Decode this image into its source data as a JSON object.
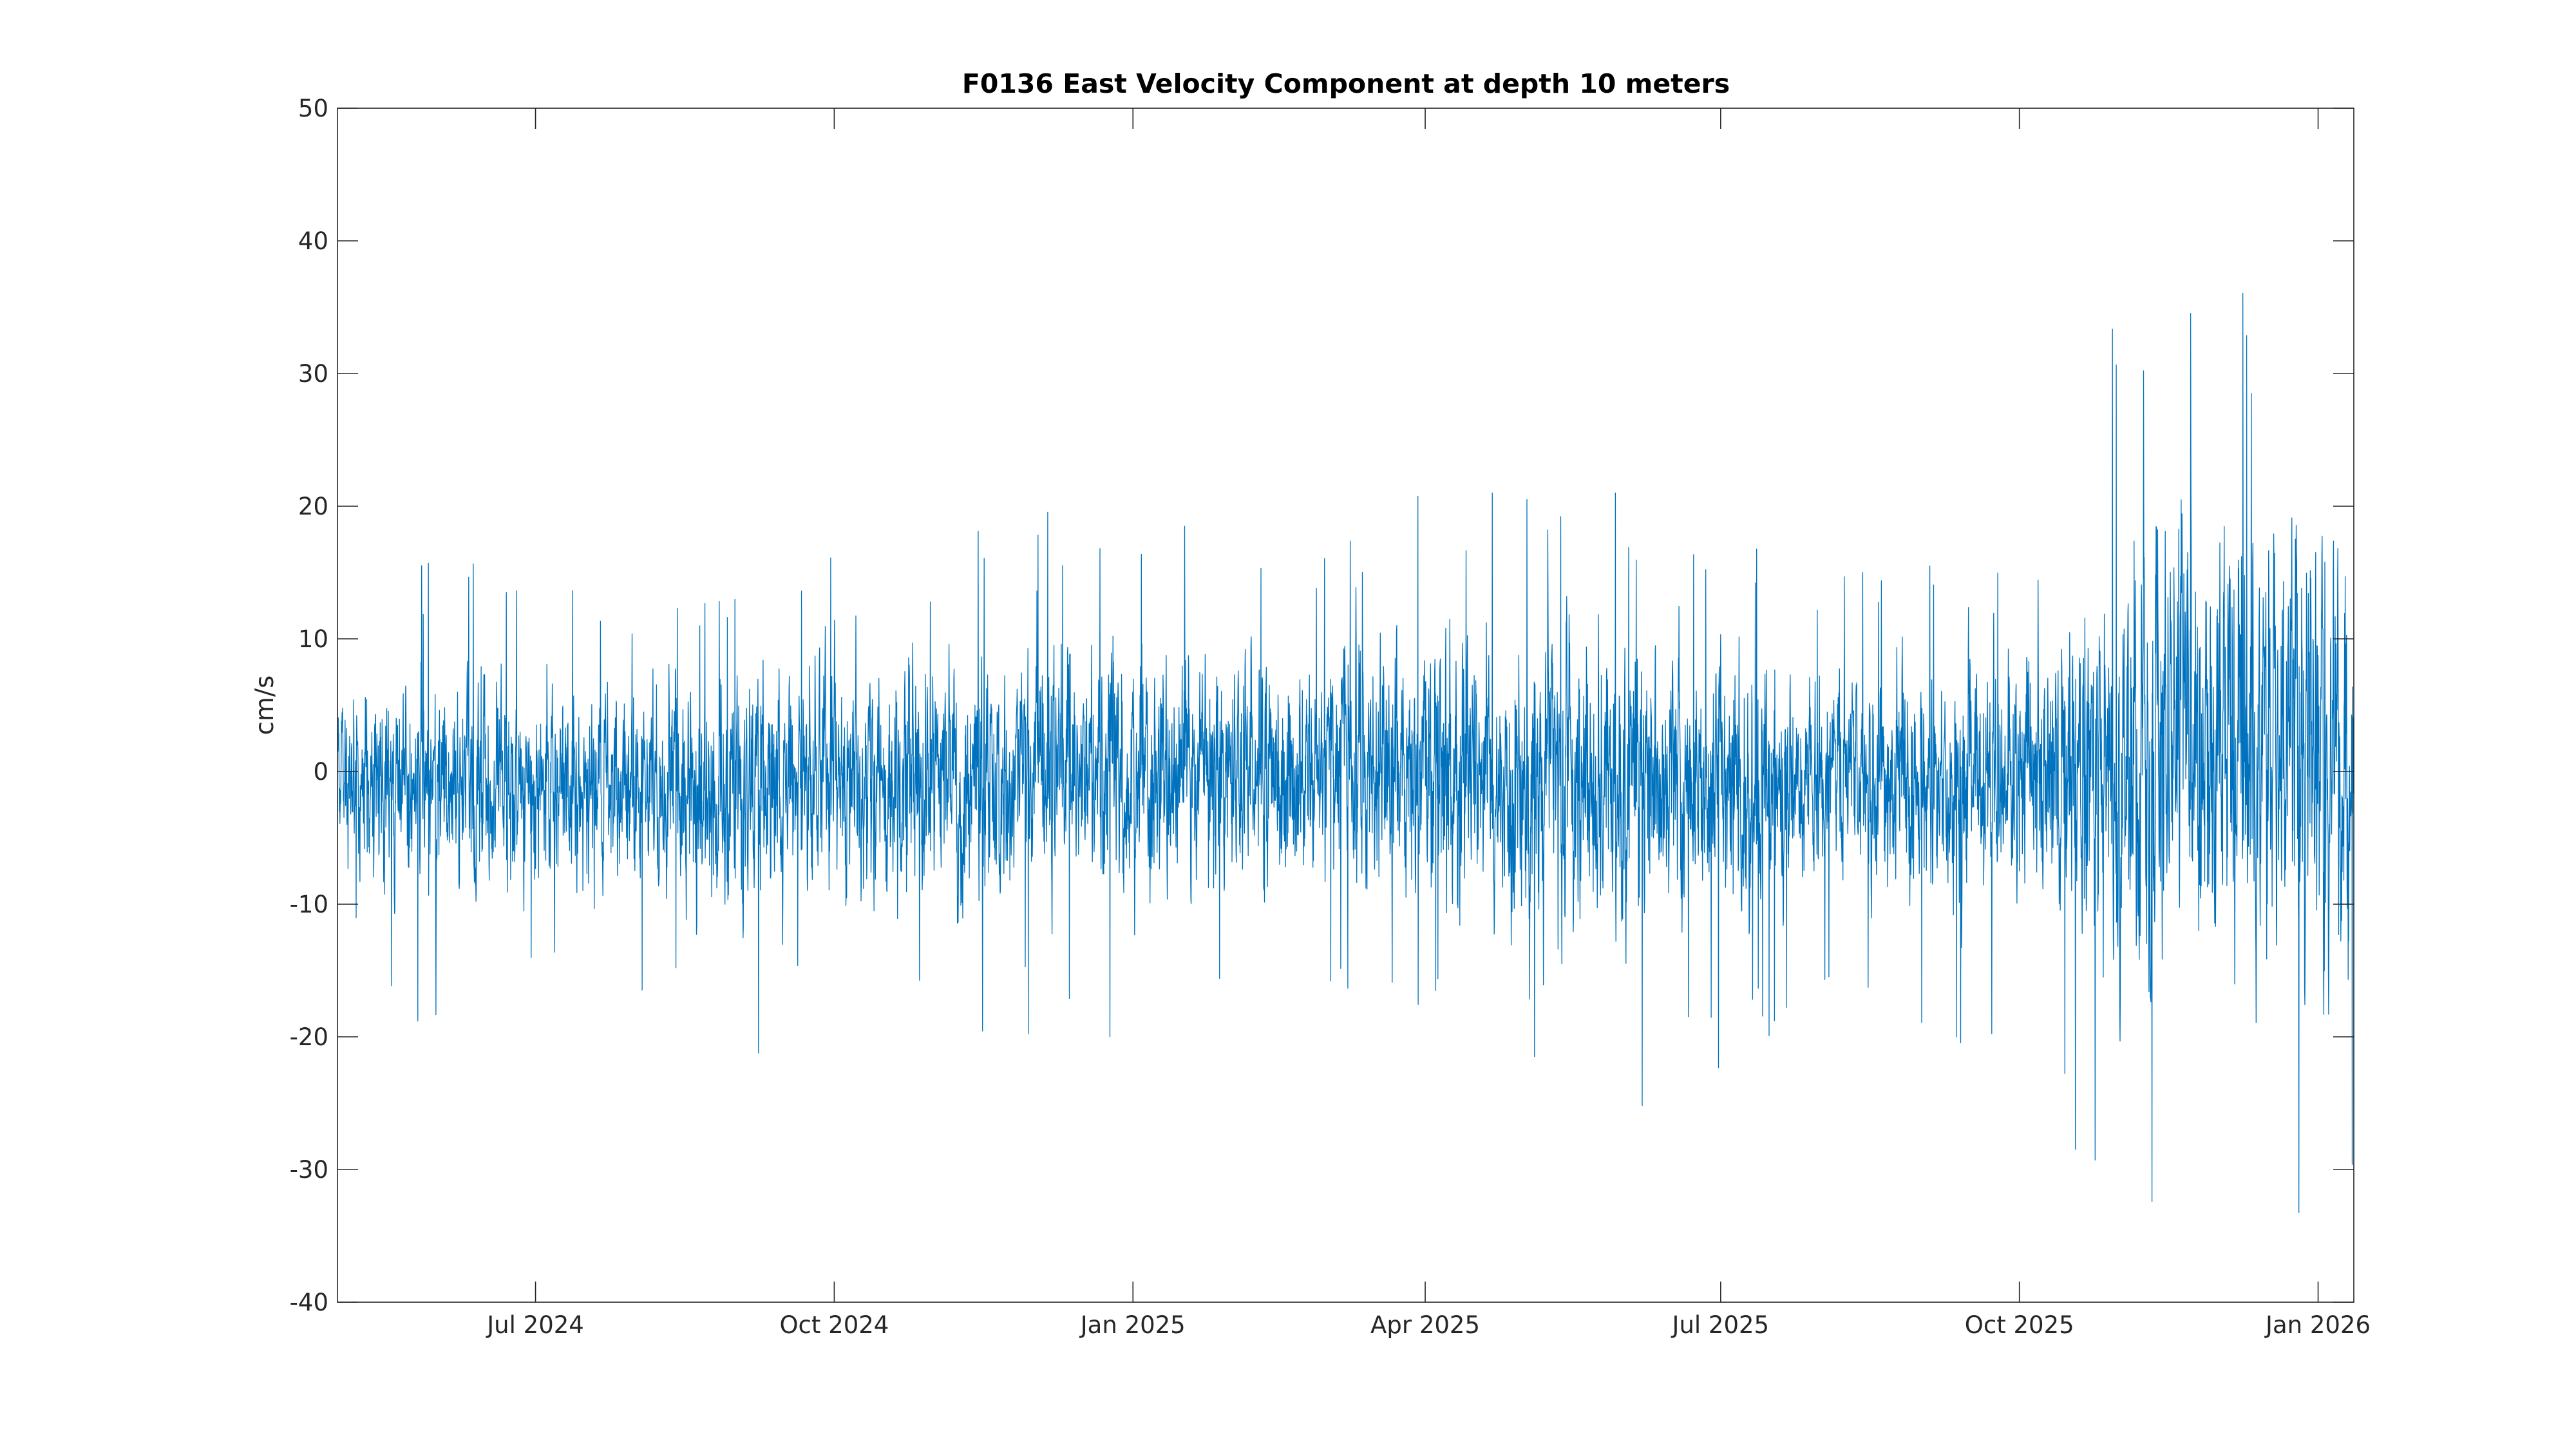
{
  "chart_data": {
    "type": "line",
    "title": "F0136 East Velocity Component at depth 10 meters",
    "xlabel": "",
    "ylabel": "cm/s",
    "xlim": [
      "2024-05-01",
      "2026-01-12"
    ],
    "ylim": [
      -40,
      50
    ],
    "yticks": [
      -40,
      -30,
      -20,
      -10,
      0,
      10,
      20,
      30,
      40,
      50
    ],
    "xticks": [
      {
        "date": "2024-07-01",
        "label": "Jul 2024"
      },
      {
        "date": "2024-10-01",
        "label": "Oct 2024"
      },
      {
        "date": "2025-01-01",
        "label": "Jan 2025"
      },
      {
        "date": "2025-04-01",
        "label": "Apr 2025"
      },
      {
        "date": "2025-07-01",
        "label": "Jul 2025"
      },
      {
        "date": "2025-10-01",
        "label": "Oct 2025"
      },
      {
        "date": "2026-01-01",
        "label": "Jan 2026"
      }
    ],
    "grid": false,
    "legend": "none",
    "series": [
      {
        "name": "",
        "color": "#0072BD",
        "sampling": "hourly",
        "envelope": [
          {
            "date": "2024-05-01",
            "min": -15,
            "max": 13
          },
          {
            "date": "2024-06-01",
            "min": -22,
            "max": 16
          },
          {
            "date": "2024-07-01",
            "min": -20,
            "max": 15
          },
          {
            "date": "2024-08-01",
            "min": -19,
            "max": 12
          },
          {
            "date": "2024-09-01",
            "min": -26,
            "max": 13
          },
          {
            "date": "2024-10-01",
            "min": -20,
            "max": 19
          },
          {
            "date": "2024-11-01",
            "min": -24,
            "max": 16
          },
          {
            "date": "2024-12-01",
            "min": -20,
            "max": 22
          },
          {
            "date": "2025-01-01",
            "min": -23,
            "max": 19
          },
          {
            "date": "2025-02-01",
            "min": -18,
            "max": 21
          },
          {
            "date": "2025-03-01",
            "min": -16,
            "max": 19
          },
          {
            "date": "2025-04-01",
            "min": -22,
            "max": 21
          },
          {
            "date": "2025-05-01",
            "min": -27,
            "max": 21
          },
          {
            "date": "2025-06-01",
            "min": -29,
            "max": 21
          },
          {
            "date": "2025-07-01",
            "min": -24,
            "max": 20
          },
          {
            "date": "2025-08-01",
            "min": -18,
            "max": 15
          },
          {
            "date": "2025-09-01",
            "min": -23,
            "max": 15
          },
          {
            "date": "2025-10-01",
            "min": -21,
            "max": 21
          },
          {
            "date": "2025-11-01",
            "min": -36,
            "max": 35
          },
          {
            "date": "2025-12-01",
            "min": -29,
            "max": 44
          },
          {
            "date": "2026-01-01",
            "min": -38,
            "max": 39
          },
          {
            "date": "2026-01-12",
            "min": -30,
            "max": 36
          }
        ]
      }
    ]
  }
}
